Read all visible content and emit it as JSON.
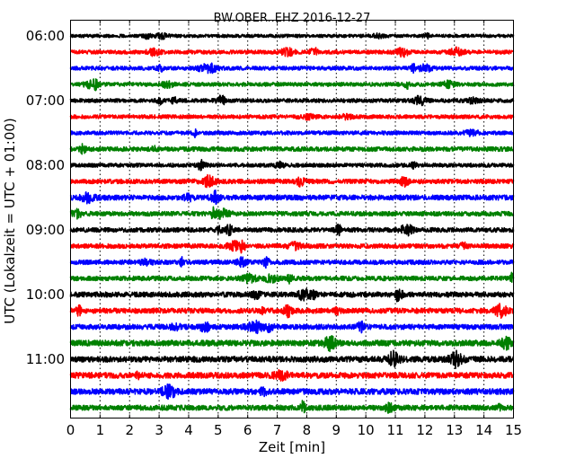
{
  "chart_data": {
    "type": "line",
    "title": "BW.OBER..EHZ 2016-12-27",
    "xlabel": "Zeit  [min]",
    "ylabel": "UTC (Lokalzeit = UTC + 01:00)",
    "xlim": [
      0,
      15
    ],
    "x_ticks": [
      "0",
      "1",
      "2",
      "3",
      "4",
      "5",
      "6",
      "7",
      "8",
      "9",
      "10",
      "11",
      "12",
      "13",
      "14",
      "15"
    ],
    "y_ticks": [
      {
        "label": "06:00",
        "trace_index": 0
      },
      {
        "label": "07:00",
        "trace_index": 4
      },
      {
        "label": "08:00",
        "trace_index": 8
      },
      {
        "label": "09:00",
        "trace_index": 12
      },
      {
        "label": "10:00",
        "trace_index": 16
      },
      {
        "label": "11:00",
        "trace_index": 20
      }
    ],
    "grid": "vertical dotted at each minute",
    "trace_interval_minutes": 15,
    "trace_count": 24,
    "trace_start": "06:00",
    "colors": [
      "#000000",
      "#ff0000",
      "#0000ff",
      "#008000"
    ],
    "series": [
      {
        "start": "06:00",
        "color": "#000000",
        "amplitude": 0.25
      },
      {
        "start": "06:15",
        "color": "#ff0000",
        "amplitude": 0.3
      },
      {
        "start": "06:30",
        "color": "#0000ff",
        "amplitude": 0.3
      },
      {
        "start": "06:45",
        "color": "#008000",
        "amplitude": 0.3
      },
      {
        "start": "07:00",
        "color": "#000000",
        "amplitude": 0.3
      },
      {
        "start": "07:15",
        "color": "#ff0000",
        "amplitude": 0.3
      },
      {
        "start": "07:30",
        "color": "#0000ff",
        "amplitude": 0.3
      },
      {
        "start": "07:45",
        "color": "#008000",
        "amplitude": 0.35
      },
      {
        "start": "08:00",
        "color": "#000000",
        "amplitude": 0.3
      },
      {
        "start": "08:15",
        "color": "#ff0000",
        "amplitude": 0.35
      },
      {
        "start": "08:30",
        "color": "#0000ff",
        "amplitude": 0.4
      },
      {
        "start": "08:45",
        "color": "#008000",
        "amplitude": 0.35
      },
      {
        "start": "09:00",
        "color": "#000000",
        "amplitude": 0.35
      },
      {
        "start": "09:15",
        "color": "#ff0000",
        "amplitude": 0.35
      },
      {
        "start": "09:30",
        "color": "#0000ff",
        "amplitude": 0.35
      },
      {
        "start": "09:45",
        "color": "#008000",
        "amplitude": 0.35
      },
      {
        "start": "10:00",
        "color": "#000000",
        "amplitude": 0.4
      },
      {
        "start": "10:15",
        "color": "#ff0000",
        "amplitude": 0.4
      },
      {
        "start": "10:30",
        "color": "#0000ff",
        "amplitude": 0.4
      },
      {
        "start": "10:45",
        "color": "#008000",
        "amplitude": 0.45
      },
      {
        "start": "11:00",
        "color": "#000000",
        "amplitude": 0.45
      },
      {
        "start": "11:15",
        "color": "#ff0000",
        "amplitude": 0.45
      },
      {
        "start": "11:30",
        "color": "#0000ff",
        "amplitude": 0.45
      },
      {
        "start": "11:45",
        "color": "#008000",
        "amplitude": 0.4
      }
    ]
  }
}
